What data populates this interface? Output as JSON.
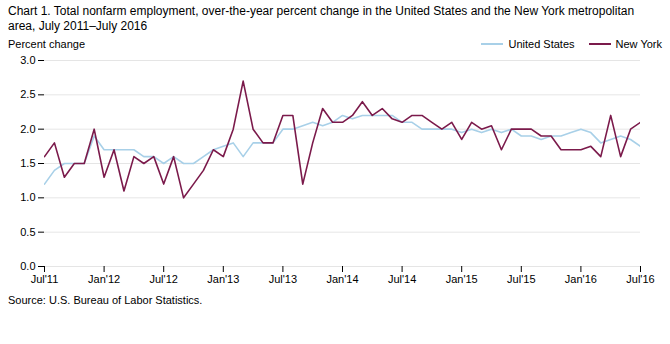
{
  "chart_data": {
    "type": "line",
    "title": "Chart 1. Total nonfarm employment, over-the-year percent change in the United States and the New York metropolitan area, July 2011–July 2016",
    "ylabel": "Percent change",
    "source": "Source: U.S. Bureau of Labor Statistics.",
    "categories": [
      "Jul'11",
      null,
      null,
      null,
      null,
      null,
      "Jan'12",
      null,
      null,
      null,
      null,
      null,
      "Jul'12",
      null,
      null,
      null,
      null,
      null,
      "Jan'13",
      null,
      null,
      null,
      null,
      null,
      "Jul'13",
      null,
      null,
      null,
      null,
      null,
      "Jan'14",
      null,
      null,
      null,
      null,
      null,
      "Jul'14",
      null,
      null,
      null,
      null,
      null,
      "Jan'15",
      null,
      null,
      null,
      null,
      null,
      "Jul'15",
      null,
      null,
      null,
      null,
      null,
      "Jan'16",
      null,
      null,
      null,
      null,
      null,
      "Jul'16"
    ],
    "series": [
      {
        "name": "United States",
        "color": "#a8d0e8",
        "values": [
          1.2,
          1.4,
          1.5,
          1.5,
          1.5,
          1.9,
          1.7,
          1.7,
          1.7,
          1.7,
          1.6,
          1.6,
          1.5,
          1.6,
          1.5,
          1.5,
          1.6,
          1.7,
          1.75,
          1.8,
          1.6,
          1.8,
          1.8,
          1.8,
          2.0,
          2.0,
          2.05,
          2.1,
          2.05,
          2.1,
          2.2,
          2.15,
          2.2,
          2.2,
          2.2,
          2.2,
          2.1,
          2.1,
          2.0,
          2.0,
          2.0,
          2.0,
          1.95,
          2.0,
          1.95,
          2.0,
          1.95,
          2.0,
          1.9,
          1.9,
          1.85,
          1.9,
          1.9,
          1.95,
          2.0,
          1.95,
          1.8,
          1.85,
          1.9,
          1.85,
          1.75
        ]
      },
      {
        "name": "New York",
        "color": "#7b1a4b",
        "values": [
          1.6,
          1.8,
          1.3,
          1.5,
          1.5,
          2.0,
          1.3,
          1.7,
          1.1,
          1.6,
          1.5,
          1.6,
          1.2,
          1.6,
          1.0,
          1.2,
          1.4,
          1.7,
          1.6,
          2.0,
          2.7,
          2.0,
          1.8,
          1.8,
          2.2,
          2.2,
          1.2,
          1.8,
          2.3,
          2.1,
          2.1,
          2.2,
          2.4,
          2.2,
          2.3,
          2.15,
          2.1,
          2.2,
          2.2,
          2.1,
          2.0,
          2.1,
          1.85,
          2.1,
          2.0,
          2.05,
          1.7,
          2.0,
          2.0,
          2.0,
          1.9,
          1.9,
          1.7,
          1.7,
          1.7,
          1.75,
          1.6,
          2.2,
          1.6,
          2.0,
          2.1
        ]
      }
    ],
    "ylim": [
      0.0,
      3.0
    ],
    "yticks": [
      {
        "value": 0.0,
        "label": "0.0"
      },
      0.5,
      {
        "value": 1.0,
        "label": "1.0"
      },
      1.5,
      {
        "value": 2.0,
        "label": "2.0"
      },
      2.5,
      {
        "value": 3.0,
        "label": "3.0"
      }
    ],
    "grid": true,
    "legend": "top-right"
  }
}
